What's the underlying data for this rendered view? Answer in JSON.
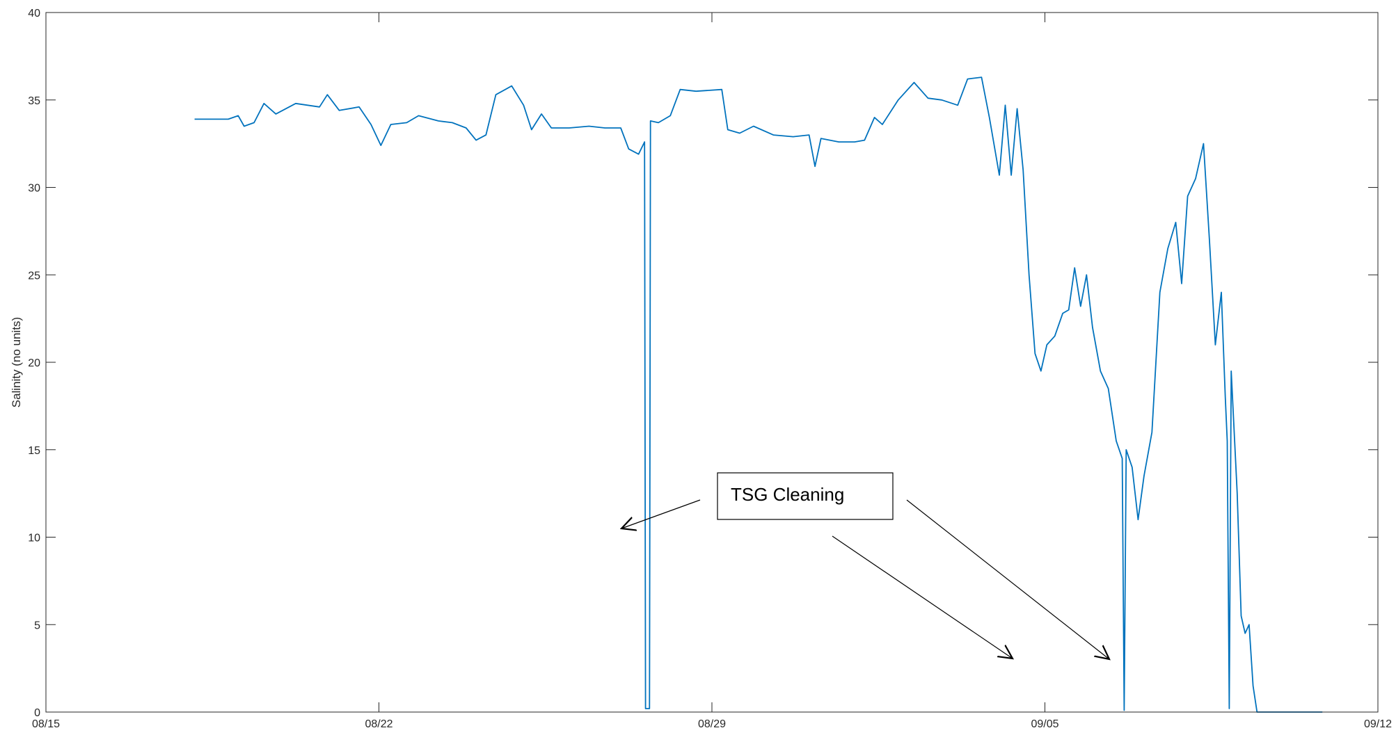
{
  "chart_data": {
    "type": "line",
    "title": "",
    "xlabel": "",
    "ylabel": "Salinity (no units)",
    "xlim": [
      "08/15",
      "09/12"
    ],
    "ylim": [
      0,
      40
    ],
    "x_ticks": [
      "08/15",
      "08/22",
      "08/29",
      "09/05",
      "09/12"
    ],
    "y_ticks": [
      "0",
      "5",
      "10",
      "15",
      "20",
      "25",
      "30",
      "35",
      "40"
    ],
    "grid": false,
    "line_color": "#0072BD",
    "annotation": {
      "text": "TSG Cleaning",
      "arrow_targets": [
        {
          "x": "08/26 17:00",
          "y": 10.5
        },
        {
          "x": "09/04 21:00",
          "y": 3
        },
        {
          "x": "09/06 22:00",
          "y": 3
        }
      ]
    },
    "series": [
      {
        "points": [
          [
            "08/18 03:00",
            33.9
          ],
          [
            "08/18 20:00",
            33.9
          ],
          [
            "08/19 01:00",
            34.1
          ],
          [
            "08/19 04:00",
            33.5
          ],
          [
            "08/19 09:00",
            33.7
          ],
          [
            "08/19 14:00",
            34.8
          ],
          [
            "08/19 20:00",
            34.2
          ],
          [
            "08/20 06:00",
            34.8
          ],
          [
            "08/20 18:00",
            34.6
          ],
          [
            "08/20 22:00",
            35.3
          ],
          [
            "08/21 04:00",
            34.4
          ],
          [
            "08/21 14:00",
            34.6
          ],
          [
            "08/21 20:00",
            33.6
          ],
          [
            "08/22 01:00",
            32.4
          ],
          [
            "08/22 06:00",
            33.6
          ],
          [
            "08/22 14:00",
            33.7
          ],
          [
            "08/22 20:00",
            34.1
          ],
          [
            "08/23 06:00",
            33.8
          ],
          [
            "08/23 13:00",
            33.7
          ],
          [
            "08/23 20:00",
            33.4
          ],
          [
            "08/24 01:00",
            32.7
          ],
          [
            "08/24 06:00",
            33.0
          ],
          [
            "08/24 11:00",
            35.3
          ],
          [
            "08/24 19:00",
            35.8
          ],
          [
            "08/25 01:00",
            34.7
          ],
          [
            "08/25 05:00",
            33.3
          ],
          [
            "08/25 10:00",
            34.2
          ],
          [
            "08/25 15:00",
            33.4
          ],
          [
            "08/26 00:00",
            33.4
          ],
          [
            "08/26 10:00",
            33.5
          ],
          [
            "08/26 18:00",
            33.4
          ],
          [
            "08/27 02:00",
            33.4
          ],
          [
            "08/27 06:00",
            32.2
          ],
          [
            "08/27 11:00",
            31.9
          ],
          [
            "08/27 14:00",
            32.6
          ],
          [
            "08/27 14:30",
            0.2
          ],
          [
            "08/27 16:30",
            0.2
          ],
          [
            "08/27 17:00",
            33.8
          ],
          [
            "08/27 21:00",
            33.7
          ],
          [
            "08/28 03:00",
            34.1
          ],
          [
            "08/28 08:00",
            35.6
          ],
          [
            "08/28 16:00",
            35.5
          ],
          [
            "08/29 05:00",
            35.6
          ],
          [
            "08/29 08:00",
            33.3
          ],
          [
            "08/29 14:00",
            33.1
          ],
          [
            "08/29 21:00",
            33.5
          ],
          [
            "08/30 07:00",
            33.0
          ],
          [
            "08/30 17:00",
            32.9
          ],
          [
            "08/31 01:00",
            33.0
          ],
          [
            "08/31 04:00",
            31.2
          ],
          [
            "08/31 07:00",
            32.8
          ],
          [
            "08/31 16:00",
            32.6
          ],
          [
            "09/01 00:00",
            32.6
          ],
          [
            "09/01 05:00",
            32.7
          ],
          [
            "09/01 10:00",
            34.0
          ],
          [
            "09/01 14:00",
            33.6
          ],
          [
            "09/01 22:00",
            35.0
          ],
          [
            "09/02 06:00",
            36.0
          ],
          [
            "09/02 13:00",
            35.1
          ],
          [
            "09/02 20:00",
            35.0
          ],
          [
            "09/03 04:00",
            34.7
          ],
          [
            "09/03 09:00",
            36.2
          ],
          [
            "09/03 16:00",
            36.3
          ],
          [
            "09/03 20:00",
            34.0
          ],
          [
            "09/04 01:00",
            30.7
          ],
          [
            "09/04 04:00",
            34.7
          ],
          [
            "09/04 07:00",
            30.7
          ],
          [
            "09/04 10:00",
            34.5
          ],
          [
            "09/04 13:00",
            31.0
          ],
          [
            "09/04 16:00",
            25.0
          ],
          [
            "09/04 19:00",
            20.5
          ],
          [
            "09/04 22:00",
            19.5
          ],
          [
            "09/05 01:00",
            21.0
          ],
          [
            "09/05 05:00",
            21.5
          ],
          [
            "09/05 09:00",
            22.8
          ],
          [
            "09/05 12:00",
            23.0
          ],
          [
            "09/05 15:00",
            25.4
          ],
          [
            "09/05 18:00",
            23.2
          ],
          [
            "09/05 21:00",
            25.0
          ],
          [
            "09/06 00:00",
            22.0
          ],
          [
            "09/06 04:00",
            19.5
          ],
          [
            "09/06 08:00",
            18.5
          ],
          [
            "09/06 12:00",
            15.5
          ],
          [
            "09/06 15:00",
            14.5
          ],
          [
            "09/06 16:00",
            0.1
          ],
          [
            "09/06 17:00",
            15.0
          ],
          [
            "09/06 20:00",
            14.0
          ],
          [
            "09/06 23:00",
            11.0
          ],
          [
            "09/07 02:00",
            13.5
          ],
          [
            "09/07 06:00",
            16.0
          ],
          [
            "09/07 10:00",
            24.0
          ],
          [
            "09/07 14:00",
            26.5
          ],
          [
            "09/07 18:00",
            28.0
          ],
          [
            "09/07 21:00",
            24.5
          ],
          [
            "09/08 00:00",
            29.5
          ],
          [
            "09/08 04:00",
            30.5
          ],
          [
            "09/08 08:00",
            32.5
          ],
          [
            "09/08 11:00",
            27.0
          ],
          [
            "09/08 14:00",
            21.0
          ],
          [
            "09/08 17:00",
            24.0
          ],
          [
            "09/08 19:00",
            18.0
          ],
          [
            "09/08 20:00",
            15.5
          ],
          [
            "09/08 21:00",
            0.2
          ],
          [
            "09/08 22:00",
            19.5
          ],
          [
            "09/09 01:00",
            12.5
          ],
          [
            "09/09 03:00",
            5.5
          ],
          [
            "09/09 05:00",
            4.5
          ],
          [
            "09/09 07:00",
            5.0
          ],
          [
            "09/09 09:00",
            1.5
          ],
          [
            "09/09 11:00",
            0.0
          ],
          [
            "09/10 20:00",
            0.0
          ]
        ]
      }
    ]
  }
}
